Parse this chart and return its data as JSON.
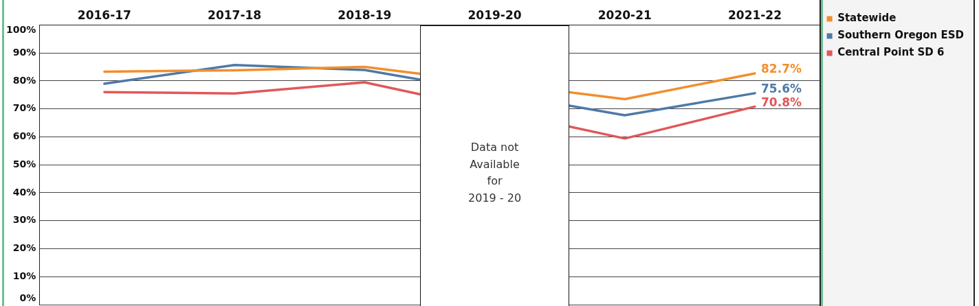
{
  "chart_data": {
    "type": "line",
    "categories": [
      "2016-17",
      "2017-18",
      "2018-19",
      "2019-20",
      "2020-21",
      "2021-22"
    ],
    "series": [
      {
        "name": "Statewide",
        "color": "#f28e2b",
        "values": [
          83.3,
          83.8,
          85.0,
          null,
          73.5,
          82.7
        ],
        "value_labels": [
          null,
          null,
          null,
          null,
          null,
          "82.7%"
        ]
      },
      {
        "name": "Southern Oregon ESD",
        "color": "#4e79a7",
        "values": [
          79.0,
          85.7,
          83.9,
          null,
          67.7,
          75.6
        ],
        "value_labels": [
          null,
          null,
          null,
          null,
          null,
          "75.6%"
        ]
      },
      {
        "name": "Central Point SD 6",
        "color": "#e15759",
        "values": [
          76.0,
          75.5,
          79.5,
          null,
          59.4,
          70.8
        ],
        "value_labels": [
          null,
          null,
          null,
          null,
          null,
          "70.8%"
        ]
      }
    ],
    "ylim": [
      0,
      100
    ],
    "yticks": [
      {
        "value": 0,
        "label": "0%"
      },
      {
        "value": 10,
        "label": "10%"
      },
      {
        "value": 20,
        "label": "20%"
      },
      {
        "value": 30,
        "label": "30%"
      },
      {
        "value": 40,
        "label": "40%"
      },
      {
        "value": 50,
        "label": "50%"
      },
      {
        "value": 60,
        "label": "60%"
      },
      {
        "value": 70,
        "label": "70%"
      },
      {
        "value": 80,
        "label": "80%"
      },
      {
        "value": 90,
        "label": "90%"
      },
      {
        "value": 100,
        "label": "100%"
      }
    ],
    "grid": "y",
    "legend": "top right",
    "annotations": [
      "Data not\nAvailable\nfor\n2019 - 20"
    ]
  }
}
